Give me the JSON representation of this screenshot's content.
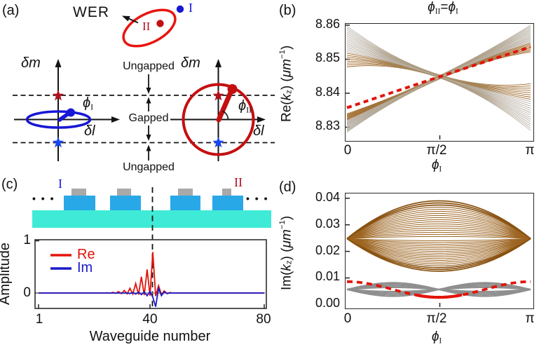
{
  "colors": {
    "red": "#e31409",
    "dark_red": "#b01020",
    "blue": "#1717d6",
    "bright_blue": "#1b46f5",
    "im_blue": "#1a1acc",
    "brown": "#9c6420",
    "band_gray": "#b5ab9d",
    "gray": "#8f8f8f",
    "substrate_cyan": "#3febd6",
    "waveguide_blue": "#29a8e8",
    "cap_gray": "#a9a9a9",
    "axis_black": "#141414"
  },
  "panel_a": {
    "label": "(a)",
    "wer_label": "WER",
    "numeral_I": "I",
    "numeral_II": "II",
    "delta_m": "δm",
    "delta_l": "δl",
    "phi": "ϕ",
    "sub_I": "I",
    "sub_II": "II",
    "ungapped": "Ungapped",
    "gapped": "Gapped"
  },
  "panel_b": {
    "label": "(b)",
    "title": {
      "phi": "ϕ",
      "sub_II": "II",
      "equals": "=",
      "sub_I": "I"
    },
    "yticks": [
      "8.86",
      "8.85",
      "8.84",
      "8.83"
    ],
    "xticks": [
      "0",
      "π/2",
      "π"
    ],
    "ylabel": {
      "p1": "Re(",
      "k": "k",
      "z": "z",
      "p2": ") (",
      "mu": "μm",
      "sup": "−1",
      "p3": ")"
    },
    "xlabel": {
      "phi": "ϕ",
      "sub": "I"
    }
  },
  "panel_c": {
    "label": "(c)",
    "numeral_I": "I",
    "numeral_II": "II",
    "dots": "• • •",
    "yticks": [
      "1",
      "0"
    ],
    "xticks": [
      "1",
      "40",
      "80"
    ],
    "ylabel": "Amplitude",
    "xlabel": "Waveguide  number",
    "legend": {
      "re": "Re",
      "im": "Im"
    }
  },
  "panel_d": {
    "label": "(d)",
    "yticks": [
      "0.04",
      "0.03",
      "0.02",
      "0.01",
      "0.00"
    ],
    "xticks": [
      "0",
      "π/2",
      "π"
    ],
    "ylabel": {
      "p1": "Im(",
      "k": "k",
      "z": "z",
      "p2": ") (",
      "mu": "μm",
      "sup": "−1",
      "p3": ")"
    },
    "xlabel": {
      "phi": "ϕ",
      "sub": "I"
    }
  },
  "chart_data": [
    {
      "id": "b",
      "type": "line",
      "title": "ϕII=ϕI",
      "xlabel": "ϕI",
      "ylabel": "Re(kz) (μm−1)",
      "x_window": [
        0,
        3.14159265
      ],
      "y_window": [
        8.8256,
        8.8604
      ],
      "x_tick_values": [
        0,
        1.5708,
        3.14159
      ],
      "y_tick_values": [
        8.83,
        8.84,
        8.85,
        8.86
      ],
      "bands": [
        {
          "name": "bulk-band-descending",
          "coloring": "desc",
          "n": 22,
          "start": [
            8.8475,
            8.8597
          ],
          "end": [
            8.8285,
            8.8425
          ],
          "mid": [
            8.8443,
            8.8452
          ]
        },
        {
          "name": "bulk-band-ascending",
          "coloring": "asc",
          "n": 22,
          "start": [
            8.828,
            8.8335
          ],
          "end": [
            8.852,
            8.86
          ],
          "mid": [
            8.8438,
            8.8448
          ]
        }
      ],
      "edge_mode": {
        "name": "WER-edge-state",
        "style": "thick-dashed",
        "points": [
          [
            0,
            8.8353
          ],
          [
            1.5708,
            8.8445
          ],
          [
            3.14159,
            8.8535
          ]
        ]
      }
    },
    {
      "id": "d",
      "type": "line",
      "xlabel": "ϕI",
      "ylabel": "Im(kz) (μm−1)",
      "x_window": [
        0,
        3.14159265
      ],
      "y_window": [
        -0.002,
        0.0418
      ],
      "x_tick_values": [
        0,
        1.5708,
        3.14159
      ],
      "y_tick_values": [
        0.0,
        0.01,
        0.02,
        0.03,
        0.04
      ],
      "lenses": [
        {
          "name": "bulk-lens-upper",
          "center": 0.0245,
          "sign": 1,
          "amp": [
            0.0008,
            0.0145
          ],
          "n": 18
        },
        {
          "name": "bulk-lens-lower",
          "center": 0.0245,
          "sign": -1,
          "amp": [
            0.0008,
            0.0125
          ],
          "n": 18
        }
      ],
      "gray_braid": {
        "center": 0.005,
        "amps": [
          0.0008,
          0.0014,
          0.002,
          0.0026
        ]
      },
      "edge_mode": {
        "name": "WER-edge-state",
        "style": "thick-dashed-solid-center",
        "base": 0.002,
        "amp": 0.006,
        "min_at": 1.5708,
        "endpoints_value": 0.008
      }
    },
    {
      "id": "c",
      "type": "line",
      "xlabel": "Waveguide number",
      "ylabel": "Amplitude",
      "x_window": [
        1,
        80
      ],
      "y_window": [
        -0.3,
        1.05
      ],
      "x_tick_values": [
        1,
        40,
        80
      ],
      "y_tick_values": [
        0,
        1
      ],
      "marker_line_x": 41,
      "series": [
        {
          "name": "Re",
          "color": "#e31409",
          "values": [
            0,
            0,
            0,
            0,
            0,
            0,
            0,
            0,
            0,
            0,
            0,
            0,
            0,
            0,
            0,
            0,
            0,
            0,
            0,
            0,
            0,
            0,
            0,
            0,
            0.005,
            -0.004,
            0.012,
            -0.006,
            0.025,
            -0.01,
            0.05,
            -0.015,
            0.09,
            -0.02,
            0.18,
            -0.03,
            0.31,
            -0.04,
            0.45,
            -0.05,
            0.78,
            -0.06,
            0.14,
            -0.03,
            0.04,
            -0.01,
            0.01,
            0,
            0,
            0,
            0,
            0,
            0,
            0,
            0,
            0,
            0,
            0,
            0,
            0,
            0,
            0,
            0,
            0,
            0,
            0,
            0,
            0,
            0,
            0,
            0,
            0,
            0,
            0,
            0,
            0,
            0,
            0,
            0,
            0
          ]
        },
        {
          "name": "Im",
          "color": "#1a1acc",
          "values": [
            0,
            0,
            0,
            0,
            0,
            0,
            0,
            0,
            0,
            0,
            0,
            0,
            0,
            0,
            0,
            0,
            0,
            0,
            0,
            0,
            0,
            0,
            0,
            0,
            0,
            0,
            0,
            0,
            0,
            0,
            0,
            0,
            -0.01,
            0.01,
            -0.02,
            0.015,
            -0.03,
            0.02,
            -0.05,
            0.03,
            -0.08,
            -0.26,
            0.09,
            -0.05,
            0.02,
            -0.01,
            0,
            0,
            0,
            0,
            0,
            0,
            0,
            0,
            0,
            0,
            0,
            0,
            0,
            0,
            0,
            0,
            0,
            0,
            0,
            0,
            0,
            0,
            0,
            0,
            0,
            0,
            0,
            0,
            0,
            0,
            0,
            0,
            0,
            0
          ]
        }
      ]
    }
  ]
}
